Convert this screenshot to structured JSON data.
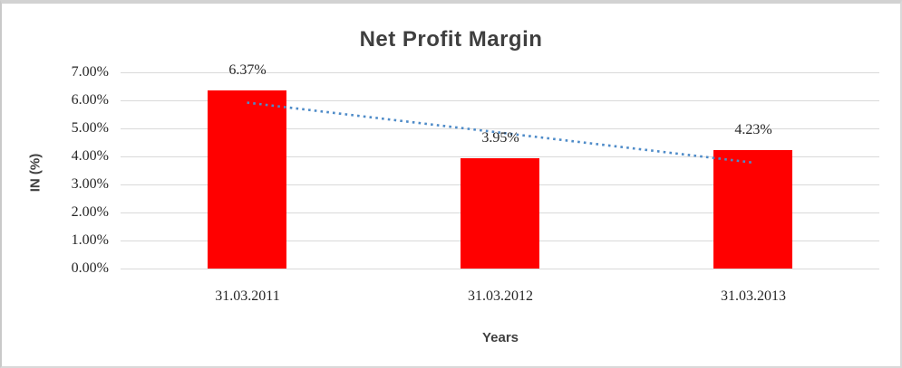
{
  "chart_data": {
    "type": "bar",
    "title": "Net Profit Margin",
    "categories": [
      "31.03.2011",
      "31.03.2012",
      "31.03.2013"
    ],
    "values": [
      6.37,
      3.95,
      4.23
    ],
    "data_labels": [
      "6.37%",
      "3.95%",
      "4.23%"
    ],
    "xlabel": "Years",
    "ylabel": "IN (%)",
    "ylim": [
      0,
      7
    ],
    "ytick_step": 1,
    "ytick_labels": [
      "0.00%",
      "1.00%",
      "2.00%",
      "3.00%",
      "4.00%",
      "5.00%",
      "6.00%",
      "7.00%"
    ],
    "grid": true,
    "legend": "none",
    "colors": {
      "bar": "#ff0000",
      "trendline": "#4e8bc8",
      "gridline": "#d9d9d9",
      "title_text": "#3f3f3f",
      "tick_text": "#262626"
    },
    "trendline": {
      "type": "linear",
      "style": "dotted",
      "start_value": 5.92,
      "end_value": 3.78
    }
  }
}
